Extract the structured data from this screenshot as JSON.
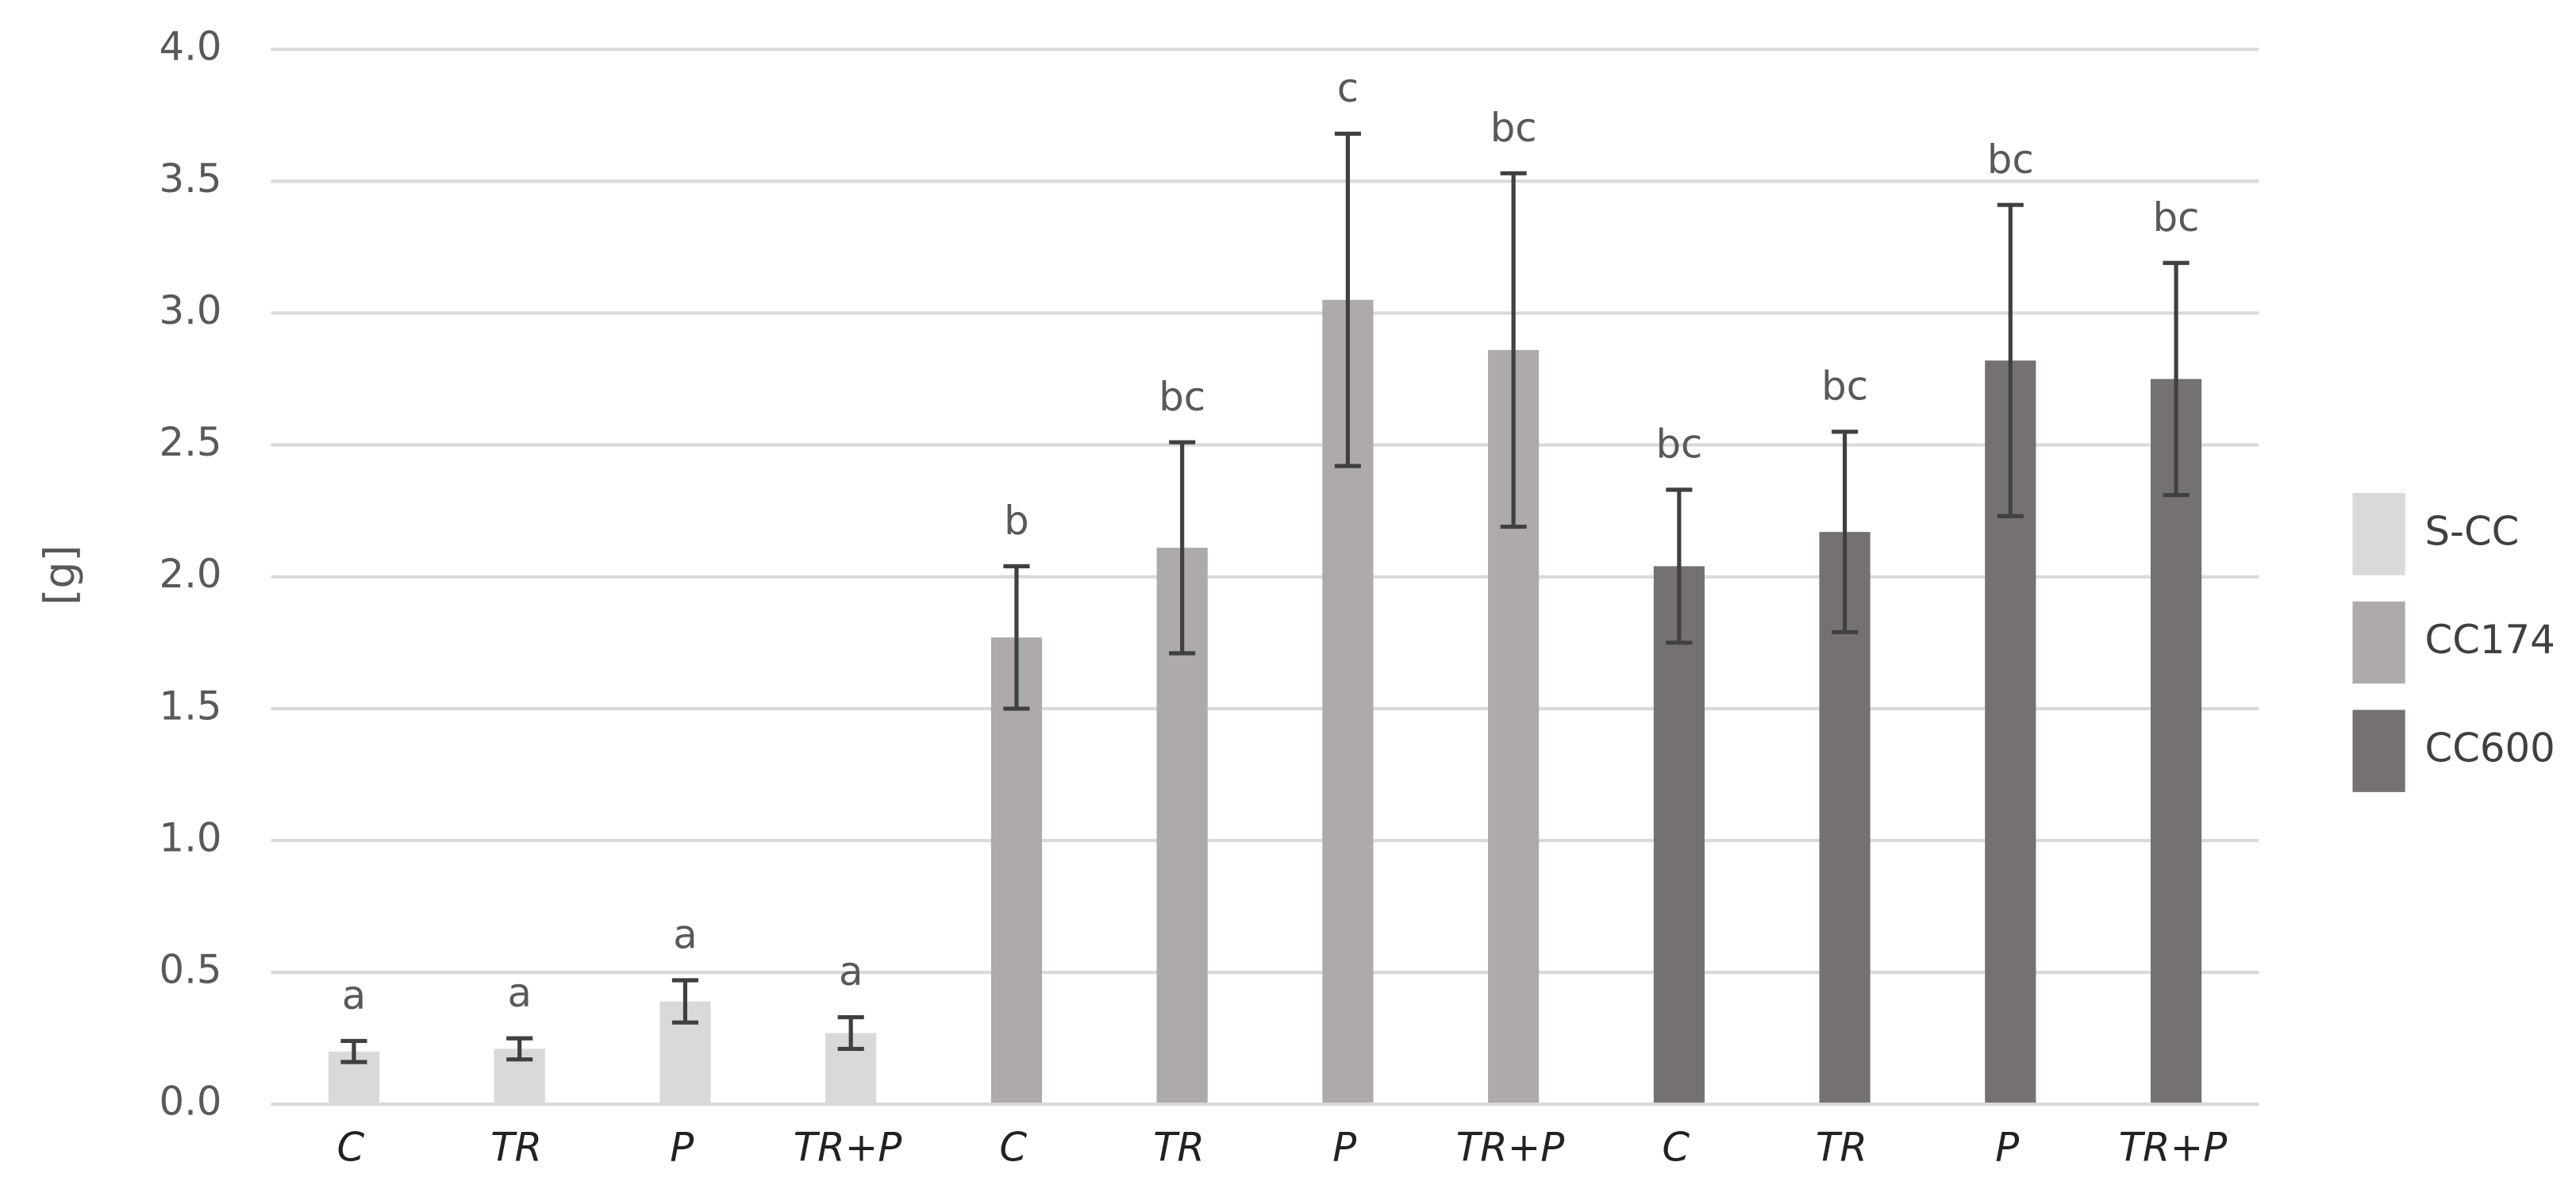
{
  "chart_data": {
    "type": "bar",
    "y_label": "[g]",
    "categories": [
      "C",
      "TR",
      "P",
      "TR+P",
      "C",
      "TR",
      "P",
      "TR+P",
      "C",
      "TR",
      "P",
      "TR+P"
    ],
    "series": [
      {
        "name": "S-CC",
        "color": "#d9d9d9",
        "values": [
          0.2,
          0.21,
          0.39,
          0.27,
          null,
          null,
          null,
          null,
          null,
          null,
          null,
          null
        ],
        "errors": [
          0.04,
          0.04,
          0.08,
          0.06,
          null,
          null,
          null,
          null,
          null,
          null,
          null,
          null
        ]
      },
      {
        "name": "CC174",
        "color": "#aeaaaa",
        "values": [
          null,
          null,
          null,
          null,
          1.77,
          2.11,
          3.05,
          2.86,
          null,
          null,
          null,
          null
        ],
        "errors": [
          null,
          null,
          null,
          null,
          0.27,
          0.4,
          0.63,
          0.67,
          null,
          null,
          null,
          null
        ]
      },
      {
        "name": "CC600",
        "color": "#767171",
        "values": [
          null,
          null,
          null,
          null,
          null,
          null,
          null,
          null,
          2.04,
          2.17,
          2.82,
          2.75
        ],
        "errors": [
          null,
          null,
          null,
          null,
          null,
          null,
          null,
          null,
          0.29,
          0.38,
          0.59,
          0.44
        ]
      }
    ],
    "significance": [
      "a",
      "a",
      "a",
      "a",
      "b",
      "bc",
      "c",
      "bc",
      "bc",
      "bc",
      "bc",
      "bc"
    ],
    "ylim": [
      0,
      4
    ],
    "yticks": [
      {
        "value": 0,
        "label": "0.0"
      },
      {
        "value": 0.5,
        "label": "0.5"
      },
      {
        "value": 1,
        "label": "1.0"
      },
      {
        "value": 1.5,
        "label": "1.5"
      },
      {
        "value": 2,
        "label": "2.0"
      },
      {
        "value": 2.5,
        "label": "2.5"
      },
      {
        "value": 3,
        "label": "3.0"
      },
      {
        "value": 3.5,
        "label": "3.5"
      },
      {
        "value": 4,
        "label": "4.0"
      }
    ],
    "grid": true,
    "legend": "right"
  }
}
